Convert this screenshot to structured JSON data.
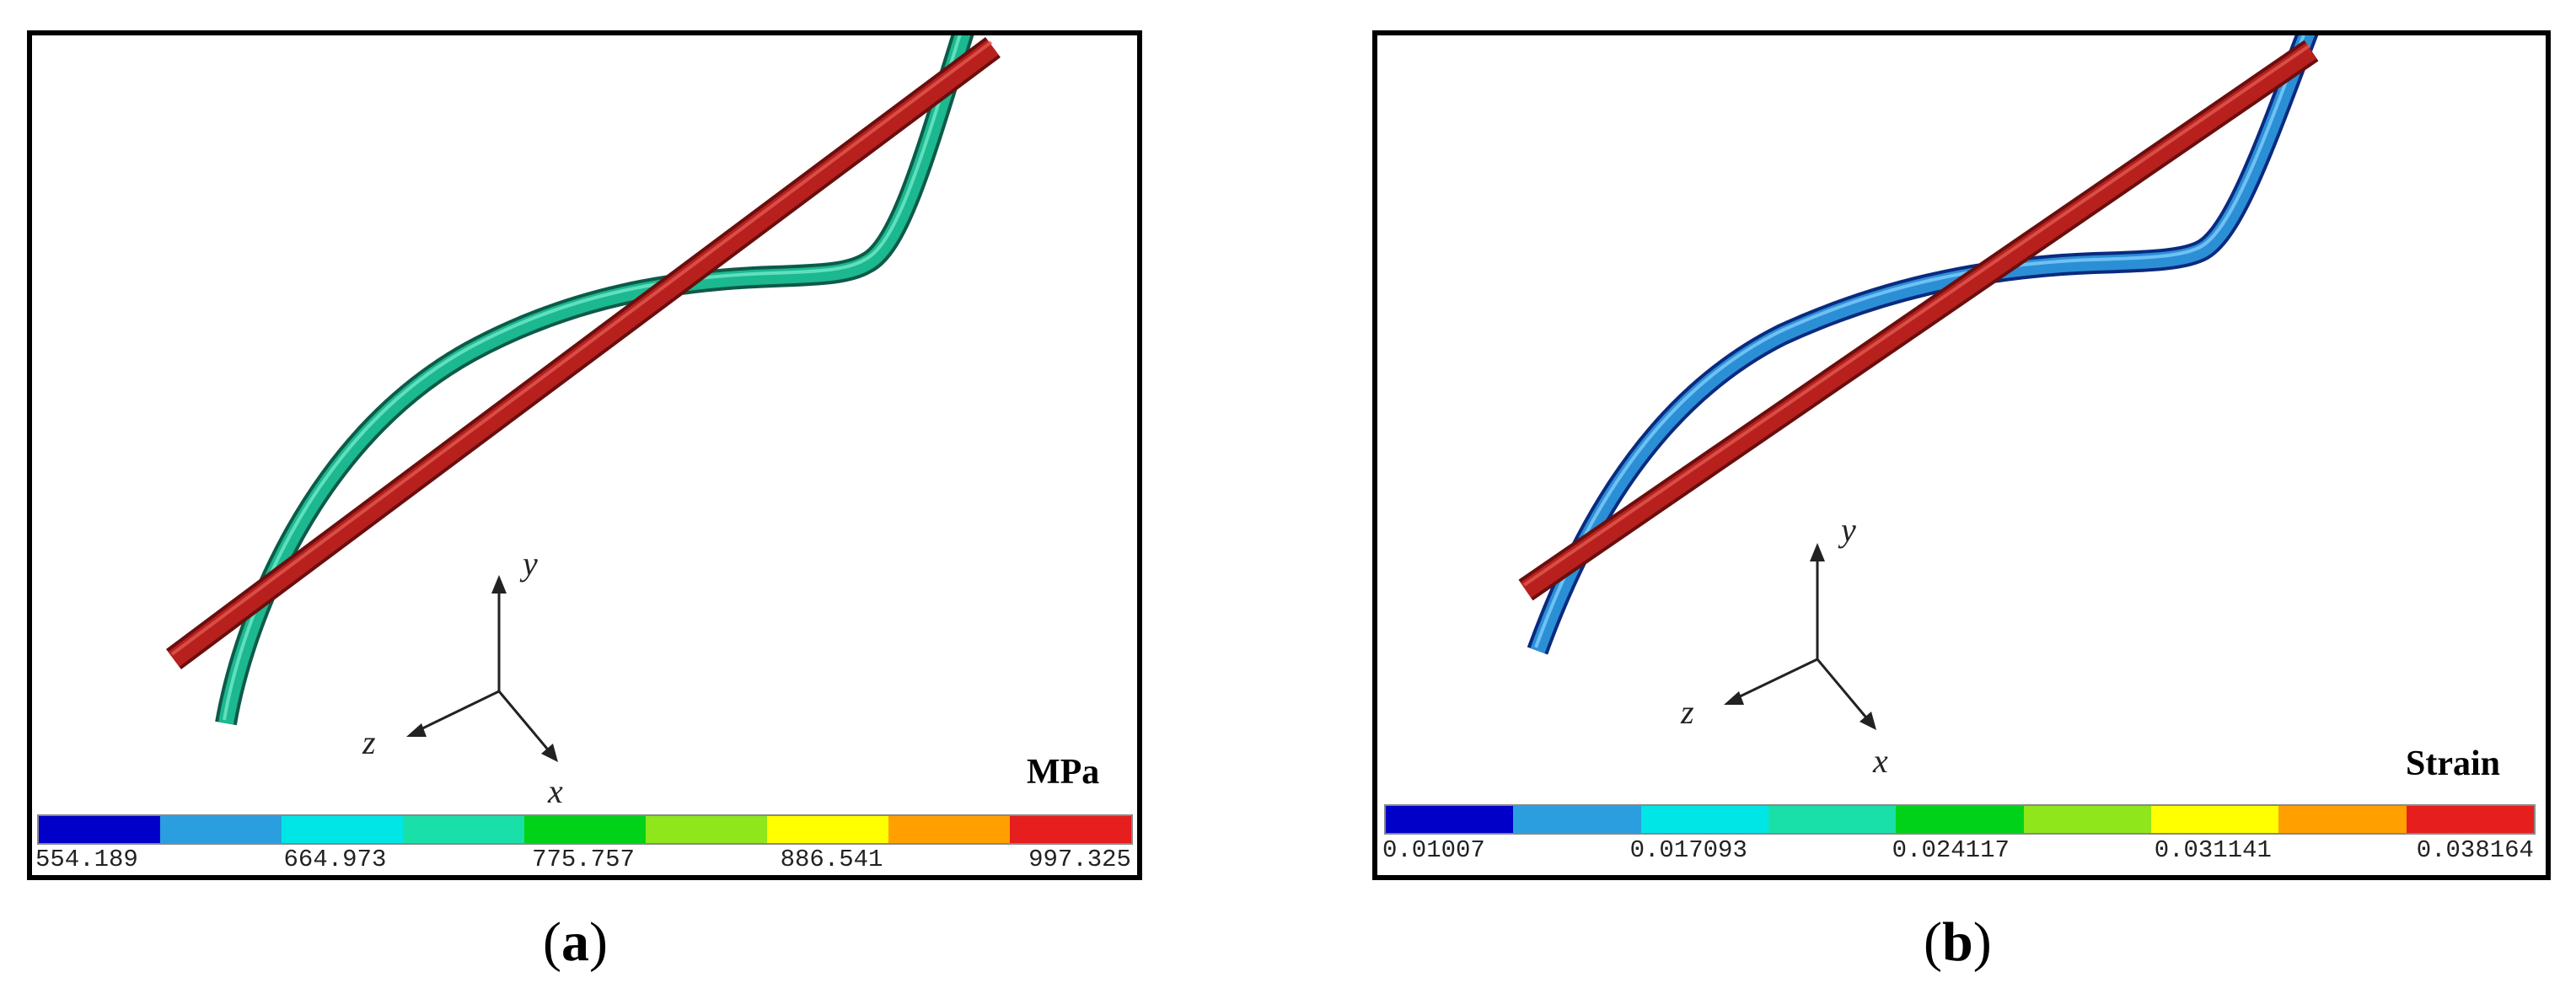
{
  "panels": [
    {
      "id": "a",
      "unit": "MPa",
      "colorbar": {
        "colors": [
          "#0000c8",
          "#2b9ee0",
          "#00e6e6",
          "#19e0a8",
          "#00d219",
          "#8fe61a",
          "#ffff00",
          "#ff9f00",
          "#e61e1e"
        ],
        "ticks": [
          "554.189",
          "664.973",
          "775.757",
          "886.541",
          "997.325"
        ]
      },
      "axes": {
        "x": "x",
        "y": "y",
        "z": "z"
      },
      "beam_color": "#1cb890",
      "bar_color": "#b8201e",
      "caption": {
        "open": "(",
        "letter": "a",
        "close": ")"
      }
    },
    {
      "id": "b",
      "unit": "Strain",
      "colorbar": {
        "colors": [
          "#0000c8",
          "#2b9ee0",
          "#00e6e6",
          "#19e0a8",
          "#00d219",
          "#8fe61a",
          "#ffff00",
          "#ff9f00",
          "#e61e1e"
        ],
        "ticks": [
          "0.01007",
          "0.017093",
          "0.024117",
          "0.031141",
          "0.038164"
        ]
      },
      "axes": {
        "x": "x",
        "y": "y",
        "z": "z"
      },
      "beam_color": "#2b8fd6",
      "bar_color": "#b8201e",
      "caption": {
        "open": "(",
        "letter": "b",
        "close": ")"
      }
    }
  ]
}
